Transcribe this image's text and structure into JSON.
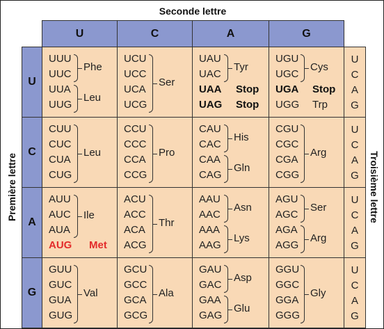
{
  "titles": {
    "second": "Seconde lettre",
    "first": "Première lettre",
    "third": "Troisième lettre"
  },
  "second_letters": [
    "U",
    "C",
    "A",
    "G"
  ],
  "first_letters": [
    "U",
    "C",
    "A",
    "G"
  ],
  "third_letters": [
    "U",
    "C",
    "A",
    "G"
  ],
  "colors": {
    "header": "#8b98cf",
    "cell": "#f9d9b6",
    "highlight": "#e32b2b"
  },
  "table": [
    [
      {
        "codons": [
          "UUU",
          "UUC",
          "UUA",
          "UUG"
        ],
        "groups": [
          {
            "from": 0,
            "to": 1,
            "aa": "Phe"
          },
          {
            "from": 2,
            "to": 3,
            "aa": "Leu"
          }
        ]
      },
      {
        "codons": [
          "UCU",
          "UCC",
          "UCA",
          "UCG"
        ],
        "groups": [
          {
            "from": 0,
            "to": 3,
            "aa": "Ser"
          }
        ]
      },
      {
        "codons": [
          "UAU",
          "UAC",
          "UAA",
          "UAG"
        ],
        "groups": [
          {
            "from": 0,
            "to": 1,
            "aa": "Tyr"
          }
        ],
        "singles": [
          {
            "row": 2,
            "aa": "Stop",
            "style": "bold"
          },
          {
            "row": 3,
            "aa": "Stop",
            "style": "bold"
          }
        ]
      },
      {
        "codons": [
          "UGU",
          "UGC",
          "UGA",
          "UGG"
        ],
        "groups": [
          {
            "from": 0,
            "to": 1,
            "aa": "Cys"
          }
        ],
        "singles": [
          {
            "row": 2,
            "aa": "Stop",
            "style": "bold"
          },
          {
            "row": 3,
            "aa": "Trp",
            "style": "normal"
          }
        ]
      }
    ],
    [
      {
        "codons": [
          "CUU",
          "CUC",
          "CUA",
          "CUG"
        ],
        "groups": [
          {
            "from": 0,
            "to": 3,
            "aa": "Leu"
          }
        ]
      },
      {
        "codons": [
          "CCU",
          "CCC",
          "CCA",
          "CCG"
        ],
        "groups": [
          {
            "from": 0,
            "to": 3,
            "aa": "Pro"
          }
        ]
      },
      {
        "codons": [
          "CAU",
          "CAC",
          "CAA",
          "CAG"
        ],
        "groups": [
          {
            "from": 0,
            "to": 1,
            "aa": "His"
          },
          {
            "from": 2,
            "to": 3,
            "aa": "Gln"
          }
        ]
      },
      {
        "codons": [
          "CGU",
          "CGC",
          "CGA",
          "CGG"
        ],
        "groups": [
          {
            "from": 0,
            "to": 3,
            "aa": "Arg"
          }
        ]
      }
    ],
    [
      {
        "codons": [
          "AUU",
          "AUC",
          "AUA",
          "AUG"
        ],
        "groups": [
          {
            "from": 0,
            "to": 2,
            "aa": "Ile"
          }
        ],
        "singles": [
          {
            "row": 3,
            "aa": "Met",
            "style": "red"
          }
        ]
      },
      {
        "codons": [
          "ACU",
          "ACC",
          "ACA",
          "ACG"
        ],
        "groups": [
          {
            "from": 0,
            "to": 3,
            "aa": "Thr"
          }
        ]
      },
      {
        "codons": [
          "AAU",
          "AAC",
          "AAA",
          "AAG"
        ],
        "groups": [
          {
            "from": 0,
            "to": 1,
            "aa": "Asn"
          },
          {
            "from": 2,
            "to": 3,
            "aa": "Lys"
          }
        ]
      },
      {
        "codons": [
          "AGU",
          "AGC",
          "AGA",
          "AGG"
        ],
        "groups": [
          {
            "from": 0,
            "to": 1,
            "aa": "Ser"
          },
          {
            "from": 2,
            "to": 3,
            "aa": "Arg"
          }
        ]
      }
    ],
    [
      {
        "codons": [
          "GUU",
          "GUC",
          "GUA",
          "GUG"
        ],
        "groups": [
          {
            "from": 0,
            "to": 3,
            "aa": "Val"
          }
        ]
      },
      {
        "codons": [
          "GCU",
          "GCC",
          "GCA",
          "GCG"
        ],
        "groups": [
          {
            "from": 0,
            "to": 3,
            "aa": "Ala"
          }
        ]
      },
      {
        "codons": [
          "GAU",
          "GAC",
          "GAA",
          "GAG"
        ],
        "groups": [
          {
            "from": 0,
            "to": 1,
            "aa": "Asp"
          },
          {
            "from": 2,
            "to": 3,
            "aa": "Glu"
          }
        ]
      },
      {
        "codons": [
          "GGU",
          "GGC",
          "GGA",
          "GGG"
        ],
        "groups": [
          {
            "from": 0,
            "to": 3,
            "aa": "Gly"
          }
        ]
      }
    ]
  ]
}
